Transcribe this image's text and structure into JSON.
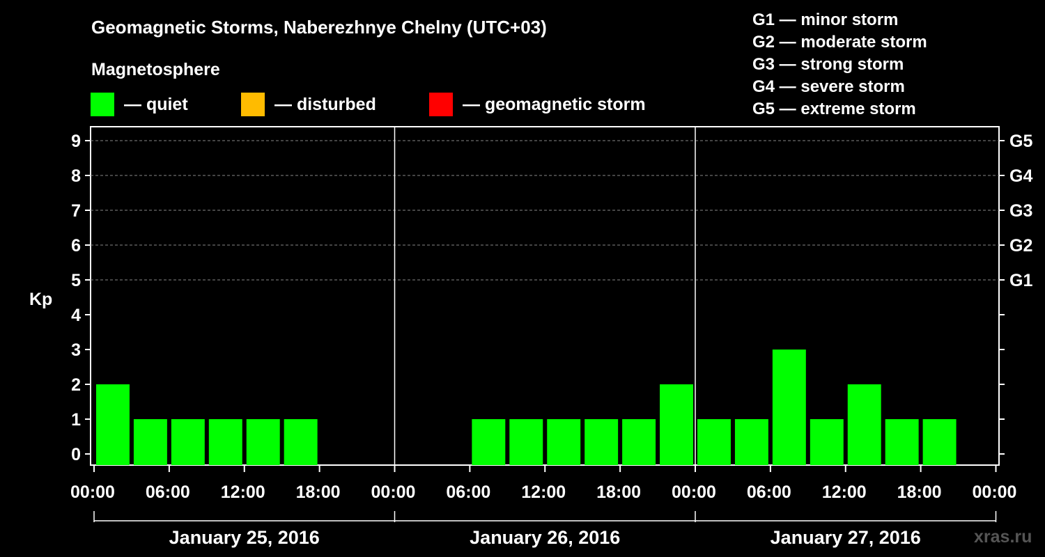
{
  "title": "Geomagnetic Storms, Naberezhnye Chelny (UTC+03)",
  "magnetosphere_label": "Magnetosphere",
  "legend": [
    {
      "label": "— quiet",
      "color": "#00ff00"
    },
    {
      "label": "— disturbed",
      "color": "#ffbb00"
    },
    {
      "label": "— geomagnetic storm",
      "color": "#ff0000"
    }
  ],
  "g_scale": [
    "G1 — minor storm",
    "G2 — moderate storm",
    "G3 — strong storm",
    "G4 — severe storm",
    "G5 — extreme storm"
  ],
  "watermark": "xras.ru",
  "chart_data": {
    "type": "bar",
    "ylabel": "Kp",
    "ylim": [
      0,
      9
    ],
    "yticks": [
      "0",
      "1",
      "2",
      "3",
      "4",
      "5",
      "6",
      "7",
      "8",
      "9"
    ],
    "right_ticks": [
      {
        "kp": 5,
        "label": "G1"
      },
      {
        "kp": 6,
        "label": "G2"
      },
      {
        "kp": 7,
        "label": "G3"
      },
      {
        "kp": 8,
        "label": "G4"
      },
      {
        "kp": 9,
        "label": "G5"
      }
    ],
    "xtick_labels": [
      "00:00",
      "06:00",
      "12:00",
      "18:00",
      "00:00",
      "06:00",
      "12:00",
      "18:00",
      "00:00",
      "06:00",
      "12:00",
      "18:00",
      "00:00"
    ],
    "days": [
      "January 25, 2016",
      "January 26, 2016",
      "January 27, 2016"
    ],
    "interval_hours": 3,
    "colors": {
      "quiet": "#00ff00",
      "disturbed": "#ffbb00",
      "storm": "#ff0000"
    },
    "values": [
      2,
      1,
      1,
      1,
      1,
      1,
      null,
      null,
      null,
      null,
      1,
      1,
      1,
      1,
      1,
      2,
      1,
      1,
      3,
      1,
      2,
      1,
      1,
      null
    ]
  }
}
